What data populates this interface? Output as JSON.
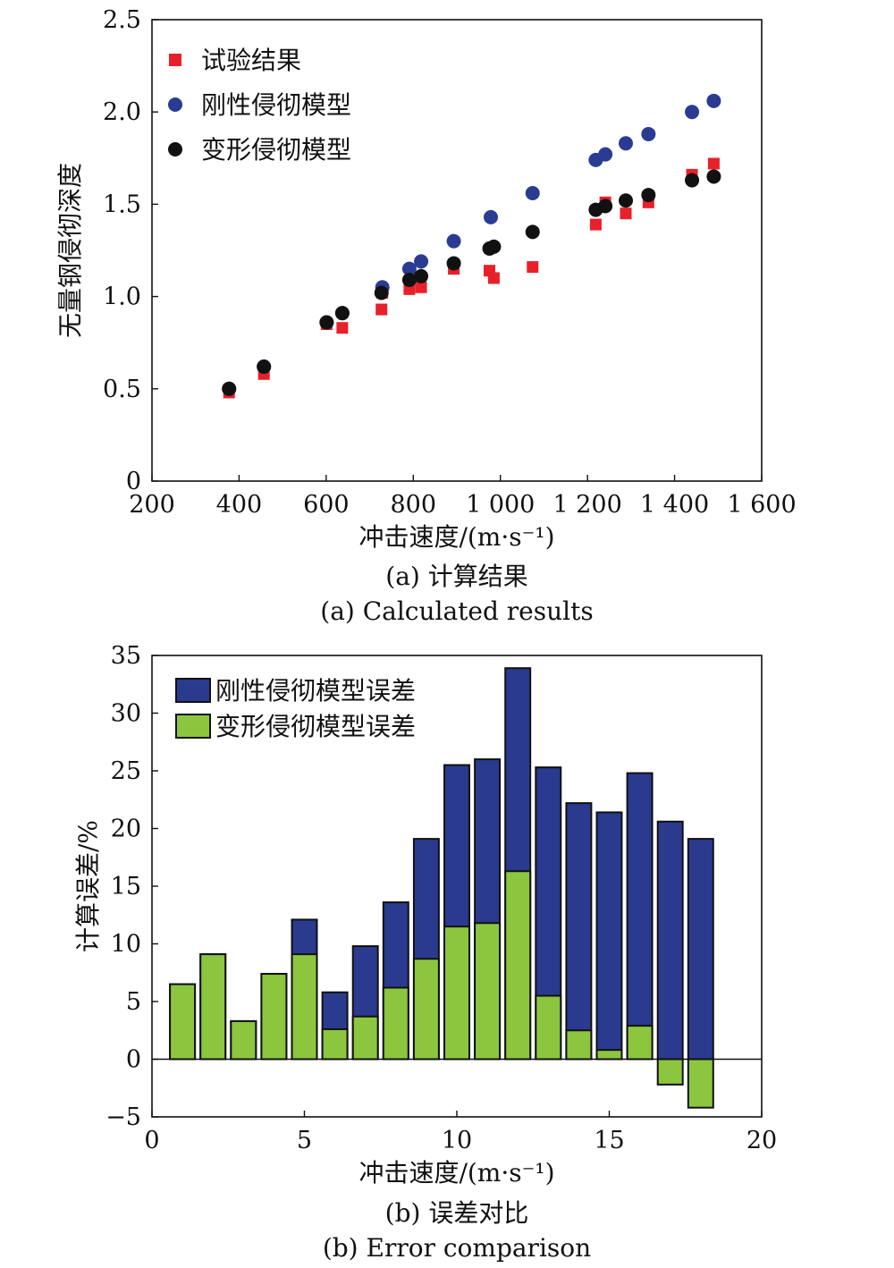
{
  "chart_data": [
    {
      "type": "scatter",
      "caption_cn": "(a) 计算结果",
      "caption_en": "(a) Calculated results",
      "xlabel": "冲击速度/(m·s⁻¹)",
      "ylabel": "无量钢侵彻深度",
      "xlim": [
        200,
        1600
      ],
      "ylim": [
        0,
        2.5
      ],
      "xticks": [
        200,
        400,
        600,
        800,
        1000,
        1200,
        1400,
        1600
      ],
      "xtick_labels": [
        "200",
        "400",
        "600",
        "800",
        "1 000",
        "1 200",
        "1 400",
        "1 600"
      ],
      "yticks": [
        0,
        0.5,
        1.0,
        1.5,
        2.0,
        2.5
      ],
      "ytick_labels": [
        "0",
        "0.5",
        "1.0",
        "1.5",
        "2.0",
        "2.5"
      ],
      "legend_position": "top-left",
      "series": [
        {
          "name": "试验结果",
          "marker": "square",
          "color": "#e8202a",
          "points": [
            [
              377,
              0.48
            ],
            [
              457,
              0.58
            ],
            [
              601,
              0.85
            ],
            [
              637,
              0.83
            ],
            [
              727,
              0.93
            ],
            [
              729,
              1.02
            ],
            [
              791,
              1.04
            ],
            [
              818,
              1.05
            ],
            [
              893,
              1.15
            ],
            [
              975,
              1.14
            ],
            [
              985,
              1.1
            ],
            [
              1074,
              1.16
            ],
            [
              1219,
              1.39
            ],
            [
              1241,
              1.51
            ],
            [
              1288,
              1.45
            ],
            [
              1340,
              1.51
            ],
            [
              1440,
              1.66
            ],
            [
              1490,
              1.72
            ]
          ]
        },
        {
          "name": "刚性侵彻模型",
          "marker": "circle",
          "color": "#2a3c92",
          "points": [
            [
              377,
              0.5
            ],
            [
              457,
              0.62
            ],
            [
              601,
              0.86
            ],
            [
              637,
              0.91
            ],
            [
              729,
              1.05
            ],
            [
              791,
              1.15
            ],
            [
              818,
              1.19
            ],
            [
              893,
              1.3
            ],
            [
              978,
              1.43
            ],
            [
              1074,
              1.56
            ],
            [
              1219,
              1.74
            ],
            [
              1241,
              1.77
            ],
            [
              1288,
              1.83
            ],
            [
              1340,
              1.88
            ],
            [
              1440,
              2.0
            ],
            [
              1490,
              2.06
            ]
          ]
        },
        {
          "name": "变形侵彻模型",
          "marker": "circle",
          "color": "#111111",
          "points": [
            [
              377,
              0.5
            ],
            [
              457,
              0.62
            ],
            [
              601,
              0.86
            ],
            [
              637,
              0.91
            ],
            [
              727,
              1.02
            ],
            [
              791,
              1.09
            ],
            [
              818,
              1.11
            ],
            [
              893,
              1.18
            ],
            [
              975,
              1.26
            ],
            [
              985,
              1.27
            ],
            [
              1074,
              1.35
            ],
            [
              1219,
              1.47
            ],
            [
              1241,
              1.49
            ],
            [
              1288,
              1.52
            ],
            [
              1340,
              1.55
            ],
            [
              1440,
              1.63
            ],
            [
              1490,
              1.65
            ]
          ]
        }
      ]
    },
    {
      "type": "bar",
      "caption_cn": "(b) 误差对比",
      "caption_en": "(b) Error comparison",
      "xlabel": "冲击速度/(m·s⁻¹)",
      "ylabel": "计算误差/%",
      "xlim": [
        0,
        20
      ],
      "ylim": [
        -5,
        35
      ],
      "xticks": [
        0,
        5,
        10,
        15,
        20
      ],
      "yticks": [
        -5,
        0,
        5,
        10,
        15,
        20,
        25,
        30,
        35
      ],
      "ytick_labels": [
        "−5",
        "0",
        "5",
        "10",
        "15",
        "20",
        "25",
        "30",
        "35"
      ],
      "legend_position": "top-left",
      "x": [
        1,
        2,
        3,
        4,
        5,
        6,
        7,
        8,
        9,
        10,
        11,
        12,
        13,
        14,
        15,
        16,
        17,
        18
      ],
      "series": [
        {
          "name": "刚性侵彻模型误差",
          "color": "#2a3a8f",
          "values": [
            6.5,
            9.1,
            3.3,
            7.4,
            12.1,
            5.8,
            9.8,
            13.6,
            19.1,
            25.5,
            26.0,
            33.9,
            25.3,
            22.2,
            21.4,
            24.8,
            20.6,
            19.1
          ]
        },
        {
          "name": "变形侵彻模型误差",
          "color": "#8cc63f",
          "values": [
            6.5,
            9.1,
            3.3,
            7.4,
            9.1,
            2.6,
            3.7,
            6.2,
            8.7,
            11.5,
            11.8,
            16.3,
            5.5,
            2.5,
            0.8,
            2.9,
            -2.2,
            -4.2
          ]
        }
      ]
    }
  ]
}
